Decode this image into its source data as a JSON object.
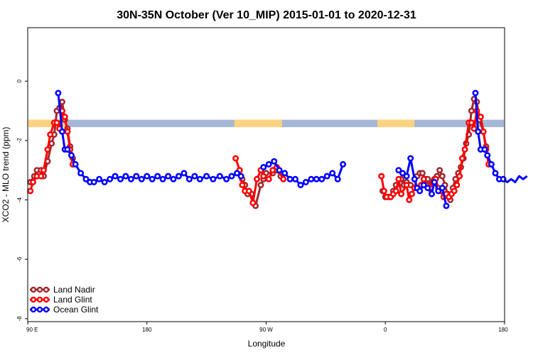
{
  "chart_data": {
    "type": "line",
    "title": "30N-35N October (Ver 10_MIP)   2015-01-01 to 2020-12-31",
    "xlabel": "Longitude",
    "ylabel": "XCO2 - MLO trend (ppm)",
    "xlim": [
      90,
      450
    ],
    "ylim": [
      -8.1,
      1.8
    ],
    "x_ticks": [
      {
        "value": 90,
        "label": "90 E"
      },
      {
        "value": 180,
        "label": "180"
      },
      {
        "value": 270,
        "label": "90 W"
      },
      {
        "value": 360,
        "label": "0"
      },
      {
        "value": 450,
        "label": "90 E"
      }
    ],
    "x_ticks_extra": [
      {
        "value": 450,
        "label": "180"
      }
    ],
    "y_ticks": [
      {
        "value": 0,
        "label": "0"
      },
      {
        "value": -2,
        "label": "-2"
      },
      {
        "value": -4,
        "label": "-4"
      },
      {
        "value": -6,
        "label": "-6"
      },
      {
        "value": -8,
        "label": "-8"
      }
    ],
    "legend_position": "bottom-left",
    "surface_band": {
      "y_top": -1.3,
      "y_bottom": -1.55,
      "land_color": "#FFD27F",
      "ocean_color": "#A5B7D6",
      "land_ranges": [
        [
          90,
          120
        ],
        [
          246,
          282
        ],
        [
          354,
          382
        ],
        [
          470,
          498
        ]
      ]
    },
    "series": [
      {
        "name": "Land Nadir",
        "color": "#A0282D",
        "points": [
          [
            92,
            -3.4
          ],
          [
            95,
            -3.2
          ],
          [
            97,
            -3.0
          ],
          [
            100,
            -3.0
          ],
          [
            102,
            -3.2
          ],
          [
            105,
            -2.7
          ],
          [
            108,
            -2.1
          ],
          [
            110,
            -1.8
          ],
          [
            112,
            -1.0
          ],
          [
            114,
            -0.9
          ],
          [
            116,
            -0.7
          ],
          [
            118,
            -1.3
          ],
          [
            120,
            -1.6
          ],
          [
            122,
            -2.2
          ],
          [
            124,
            -2.6
          ],
          [
            250,
            -3.0
          ],
          [
            252,
            -3.3
          ],
          [
            254,
            -3.5
          ],
          [
            256,
            -3.8
          ],
          [
            259,
            -3.8
          ],
          [
            262,
            -4.2
          ],
          [
            266,
            -3.5
          ],
          [
            268,
            -3.3
          ],
          [
            270,
            -3.1
          ],
          [
            275,
            -3.1
          ],
          [
            278,
            -3.0
          ],
          [
            281,
            -3.2
          ],
          [
            358,
            -3.7
          ],
          [
            360,
            -3.9
          ],
          [
            363,
            -3.9
          ],
          [
            366,
            -3.7
          ],
          [
            368,
            -3.5
          ],
          [
            372,
            -3.3
          ],
          [
            374,
            -3.5
          ],
          [
            376,
            -3.4
          ],
          [
            379,
            -3.5
          ],
          [
            382,
            -3.6
          ],
          [
            384,
            -3.2
          ],
          [
            386,
            -3.1
          ],
          [
            388,
            -3.1
          ],
          [
            390,
            -3.3
          ],
          [
            392,
            -3.3
          ],
          [
            395,
            -3.4
          ],
          [
            397,
            -3.3
          ],
          [
            399,
            -3.2
          ],
          [
            401,
            -3.0
          ],
          [
            403,
            -3.2
          ],
          [
            405,
            -3.5
          ],
          [
            407,
            -3.8
          ],
          [
            409,
            -4.0
          ],
          [
            411,
            -3.6
          ],
          [
            413,
            -3.3
          ],
          [
            415,
            -3.1
          ],
          [
            417,
            -2.9
          ],
          [
            419,
            -2.6
          ],
          [
            421,
            -2.1
          ],
          [
            423,
            -1.8
          ],
          [
            425,
            -1.0
          ],
          [
            427,
            -0.6
          ],
          [
            429,
            -0.7
          ],
          [
            431,
            -1.3
          ],
          [
            434,
            -1.7
          ],
          [
            436,
            -2.2
          ]
        ]
      },
      {
        "name": "Land Glint",
        "color": "#FF0000",
        "points": [
          [
            92,
            -3.7
          ],
          [
            94,
            -3.4
          ],
          [
            97,
            -3.2
          ],
          [
            100,
            -3.2
          ],
          [
            102,
            -3.0
          ],
          [
            105,
            -2.3
          ],
          [
            107,
            -1.8
          ],
          [
            110,
            -1.4
          ],
          [
            112,
            -1.4
          ],
          [
            114,
            -1.6
          ],
          [
            116,
            -1.0
          ],
          [
            118,
            -1.2
          ],
          [
            120,
            -1.7
          ],
          [
            122,
            -2.3
          ],
          [
            124,
            -2.8
          ],
          [
            247,
            -2.6
          ],
          [
            250,
            -3.0
          ],
          [
            252,
            -3.5
          ],
          [
            254,
            -3.7
          ],
          [
            257,
            -3.7
          ],
          [
            260,
            -4.1
          ],
          [
            263,
            -3.3
          ],
          [
            266,
            -3.0
          ],
          [
            268,
            -3.2
          ],
          [
            272,
            -3.3
          ],
          [
            275,
            -3.0
          ],
          [
            278,
            -2.9
          ],
          [
            283,
            -3.3
          ],
          [
            357,
            -3.2
          ],
          [
            359,
            -3.7
          ],
          [
            361,
            -3.9
          ],
          [
            364,
            -3.9
          ],
          [
            366,
            -3.8
          ],
          [
            368,
            -3.7
          ],
          [
            370,
            -3.3
          ],
          [
            372,
            -3.8
          ],
          [
            376,
            -3.5
          ],
          [
            378,
            -4.0
          ],
          [
            380,
            -3.8
          ],
          [
            382,
            -3.6
          ],
          [
            385,
            -3.6
          ],
          [
            387,
            -3.5
          ],
          [
            389,
            -3.3
          ],
          [
            391,
            -3.5
          ],
          [
            394,
            -3.6
          ],
          [
            396,
            -3.4
          ],
          [
            398,
            -3.3
          ],
          [
            400,
            -3.6
          ],
          [
            402,
            -3.7
          ],
          [
            404,
            -3.9
          ],
          [
            406,
            -3.8
          ],
          [
            408,
            -3.9
          ],
          [
            410,
            -3.8
          ],
          [
            412,
            -3.7
          ],
          [
            414,
            -3.5
          ],
          [
            416,
            -3.2
          ],
          [
            418,
            -2.6
          ],
          [
            420,
            -2.3
          ],
          [
            423,
            -1.4
          ],
          [
            425,
            -1.4
          ],
          [
            427,
            -1.6
          ],
          [
            429,
            -1.0
          ],
          [
            432,
            -1.2
          ],
          [
            434,
            -1.7
          ],
          [
            436,
            -2.3
          ],
          [
            438,
            -2.8
          ]
        ]
      },
      {
        "name": "Ocean Glint",
        "color": "#0000FF",
        "points": [
          [
            113,
            -0.4
          ],
          [
            116,
            -1.7
          ],
          [
            118,
            -2.3
          ],
          [
            120,
            -2.3
          ],
          [
            123,
            -2.5
          ],
          [
            126,
            -2.8
          ],
          [
            130,
            -3.1
          ],
          [
            134,
            -3.3
          ],
          [
            137,
            -3.4
          ],
          [
            140,
            -3.4
          ],
          [
            144,
            -3.3
          ],
          [
            148,
            -3.4
          ],
          [
            152,
            -3.3
          ],
          [
            156,
            -3.2
          ],
          [
            160,
            -3.3
          ],
          [
            164,
            -3.2
          ],
          [
            168,
            -3.3
          ],
          [
            172,
            -3.2
          ],
          [
            176,
            -3.3
          ],
          [
            180,
            -3.2
          ],
          [
            184,
            -3.3
          ],
          [
            188,
            -3.2
          ],
          [
            192,
            -3.3
          ],
          [
            196,
            -3.2
          ],
          [
            200,
            -3.3
          ],
          [
            204,
            -3.2
          ],
          [
            208,
            -3.1
          ],
          [
            212,
            -3.3
          ],
          [
            216,
            -3.2
          ],
          [
            220,
            -3.3
          ],
          [
            225,
            -3.2
          ],
          [
            230,
            -3.3
          ],
          [
            235,
            -3.2
          ],
          [
            240,
            -3.3
          ],
          [
            244,
            -3.2
          ],
          [
            248,
            -3.1
          ],
          [
            251,
            -3.2
          ],
          [
            268,
            -2.9
          ],
          [
            272,
            -2.8
          ],
          [
            276,
            -2.7
          ],
          [
            280,
            -3.0
          ],
          [
            284,
            -3.1
          ],
          [
            288,
            -3.3
          ],
          [
            292,
            -3.3
          ],
          [
            296,
            -3.5
          ],
          [
            300,
            -3.4
          ],
          [
            304,
            -3.3
          ],
          [
            308,
            -3.3
          ],
          [
            312,
            -3.3
          ],
          [
            316,
            -3.2
          ],
          [
            320,
            -3.1
          ],
          [
            324,
            -3.3
          ],
          [
            328,
            -2.8
          ],
          [
            370,
            -3.0
          ],
          [
            373,
            -3.1
          ],
          [
            376,
            -3.2
          ],
          [
            379,
            -2.6
          ],
          [
            382,
            -3.3
          ],
          [
            384,
            -3.6
          ],
          [
            386,
            -3.7
          ],
          [
            389,
            -3.5
          ],
          [
            392,
            -3.6
          ],
          [
            395,
            -3.8
          ],
          [
            397,
            -3.4
          ],
          [
            400,
            -3.7
          ],
          [
            403,
            -3.6
          ],
          [
            406,
            -4.2
          ],
          [
            428,
            -0.4
          ],
          [
            430,
            -1.7
          ],
          [
            432,
            -2.3
          ],
          [
            435,
            -2.3
          ],
          [
            437,
            -2.5
          ],
          [
            440,
            -2.8
          ],
          [
            443,
            -3.1
          ],
          [
            446,
            -3.3
          ],
          [
            449,
            -3.3
          ],
          [
            452,
            -3.4
          ],
          [
            455,
            -3.3
          ],
          [
            458,
            -3.4
          ],
          [
            461,
            -3.2
          ],
          [
            464,
            -3.3
          ],
          [
            467,
            -3.2
          ]
        ]
      }
    ]
  }
}
